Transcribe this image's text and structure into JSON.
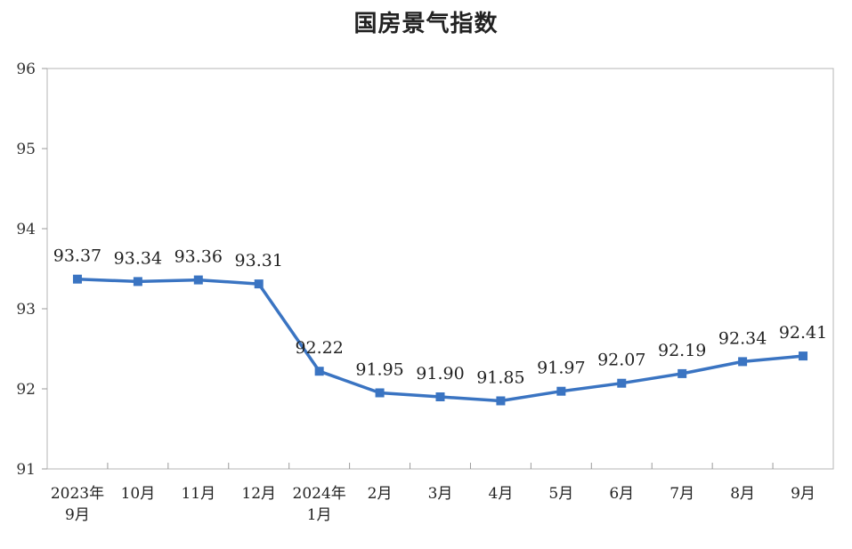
{
  "chart_data": {
    "type": "line",
    "title": "国房景气指数",
    "categories": [
      [
        "2023年",
        "9月"
      ],
      [
        "10月"
      ],
      [
        "11月"
      ],
      [
        "12月"
      ],
      [
        "2024年",
        "1月"
      ],
      [
        "2月"
      ],
      [
        "3月"
      ],
      [
        "4月"
      ],
      [
        "5月"
      ],
      [
        "6月"
      ],
      [
        "7月"
      ],
      [
        "8月"
      ],
      [
        "9月"
      ]
    ],
    "series": [
      {
        "values": [
          93.37,
          93.34,
          93.36,
          93.31,
          92.22,
          91.95,
          91.9,
          91.85,
          91.97,
          92.07,
          92.19,
          92.34,
          92.41
        ]
      }
    ],
    "data_labels": [
      "93.37",
      "93.34",
      "93.36",
      "93.31",
      "92.22",
      "91.95",
      "91.90",
      "91.85",
      "91.97",
      "92.07",
      "92.19",
      "92.34",
      "92.41"
    ],
    "ylim": [
      91,
      96
    ],
    "yticks": [
      "91",
      "92",
      "93",
      "94",
      "95",
      "96"
    ],
    "grid": false,
    "legend": "none",
    "colors": {
      "line": "#3a74c2",
      "axis": "#9a9a9a",
      "frame": "#b5b5b5"
    }
  }
}
